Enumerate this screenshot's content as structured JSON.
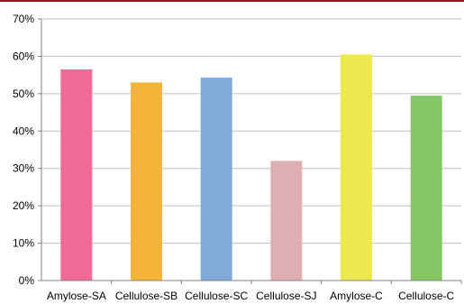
{
  "chart_data": {
    "type": "bar",
    "categories": [
      "Amylose-SA",
      "Cellulose-SB",
      "Cellulose-SC",
      "Cellulose-SJ",
      "Amylose-C",
      "Cellulose-C"
    ],
    "values": [
      56.5,
      53,
      54.3,
      32,
      60.5,
      49.5
    ],
    "value_unit": "%",
    "ylim": [
      0,
      70
    ],
    "yticks": [
      "0%",
      "10%",
      "20%",
      "30%",
      "40%",
      "50%",
      "60%",
      "70%"
    ],
    "grid": "horizontal",
    "legend": "none",
    "colors": [
      "#f06b96",
      "#f4b43a",
      "#80aad8",
      "#deafb2",
      "#ece84d",
      "#84c765"
    ]
  },
  "frame": {
    "top_border_color": "#8b1a1a",
    "grid_color": "#bfbfbf",
    "axis_color": "#808080"
  }
}
